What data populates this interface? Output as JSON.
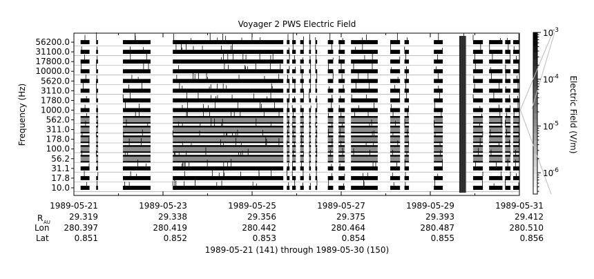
{
  "chart_data": {
    "type": "heatmap",
    "title": "Voyager 2 PWS Electric Field",
    "ylabel": "Frequency (Hz)",
    "colorbar_label": "Electric Field (V/m)",
    "colorbar_scale": "log",
    "colorbar_range": [
      3.5e-07,
      0.001
    ],
    "colorbar_ticks": [
      {
        "value": 0.001,
        "mant": "10",
        "exp": "-3"
      },
      {
        "value": 0.0001,
        "mant": "10",
        "exp": "-4"
      },
      {
        "value": 1e-05,
        "mant": "10",
        "exp": "-5"
      },
      {
        "value": 1e-06,
        "mant": "10",
        "exp": "-6"
      }
    ],
    "channels": [
      "10.0",
      "17.8",
      "31.1",
      "56.2",
      "100.0",
      "178.0",
      "311.0",
      "562.0",
      "1000.0",
      "1780.0",
      "3110.0",
      "5620.0",
      "10000.0",
      "17800.0",
      "31100.0",
      "56200.0"
    ],
    "channel_tick_labels": [
      "56200.0",
      "31100.0",
      "17800.0",
      "10000.0",
      "5620.0",
      "3110.0",
      "1780.0",
      "1000.0",
      "562.0",
      "311.0",
      "178.0",
      "100.0",
      "56.2",
      "31.1",
      "17.8",
      "10.0"
    ],
    "x_range": [
      "1989-05-21",
      "1989-05-31"
    ],
    "x_ticks": [
      "1989-05-21",
      "1989-05-23",
      "1989-05-25",
      "1989-05-27",
      "1989-05-29",
      "1989-05-31"
    ],
    "data_segments_days": [
      [
        0.15,
        0.35
      ],
      [
        0.5,
        0.54
      ],
      [
        1.1,
        1.72
      ],
      [
        2.22,
        4.7
      ],
      [
        4.78,
        4.84
      ],
      [
        4.9,
        4.98
      ],
      [
        5.08,
        5.16
      ],
      [
        5.28,
        5.32
      ],
      [
        5.42,
        5.46
      ],
      [
        5.7,
        5.82
      ],
      [
        5.94,
        6.08
      ],
      [
        6.22,
        6.82
      ],
      [
        7.1,
        7.32
      ],
      [
        7.42,
        7.52
      ],
      [
        8.08,
        8.28
      ],
      [
        8.7,
        8.76
      ],
      [
        8.96,
        9.18
      ],
      [
        9.32,
        9.62
      ],
      [
        9.68,
        9.8
      ],
      [
        9.86,
        10.0
      ]
    ],
    "intense_band_days": [
      8.65,
      8.8
    ],
    "ephemeris": {
      "labels": {
        "r": "R",
        "r_sub": "AU",
        "lon": "Lon",
        "lat": "Lat"
      },
      "rows": [
        {
          "date": "1989-05-21",
          "r": "29.319",
          "lon": "280.397",
          "lat": "0.851"
        },
        {
          "date": "1989-05-23",
          "r": "29.338",
          "lon": "280.419",
          "lat": "0.852"
        },
        {
          "date": "1989-05-25",
          "r": "29.356",
          "lon": "280.442",
          "lat": "0.853"
        },
        {
          "date": "1989-05-27",
          "r": "29.375",
          "lon": "280.464",
          "lat": "0.854"
        },
        {
          "date": "1989-05-29",
          "r": "29.393",
          "lon": "280.487",
          "lat": "0.855"
        },
        {
          "date": "1989-05-31",
          "r": "29.412",
          "lon": "280.510",
          "lat": "0.856"
        }
      ]
    },
    "range_caption": "1989-05-21 (141) through 1989-05-30 (150)"
  }
}
